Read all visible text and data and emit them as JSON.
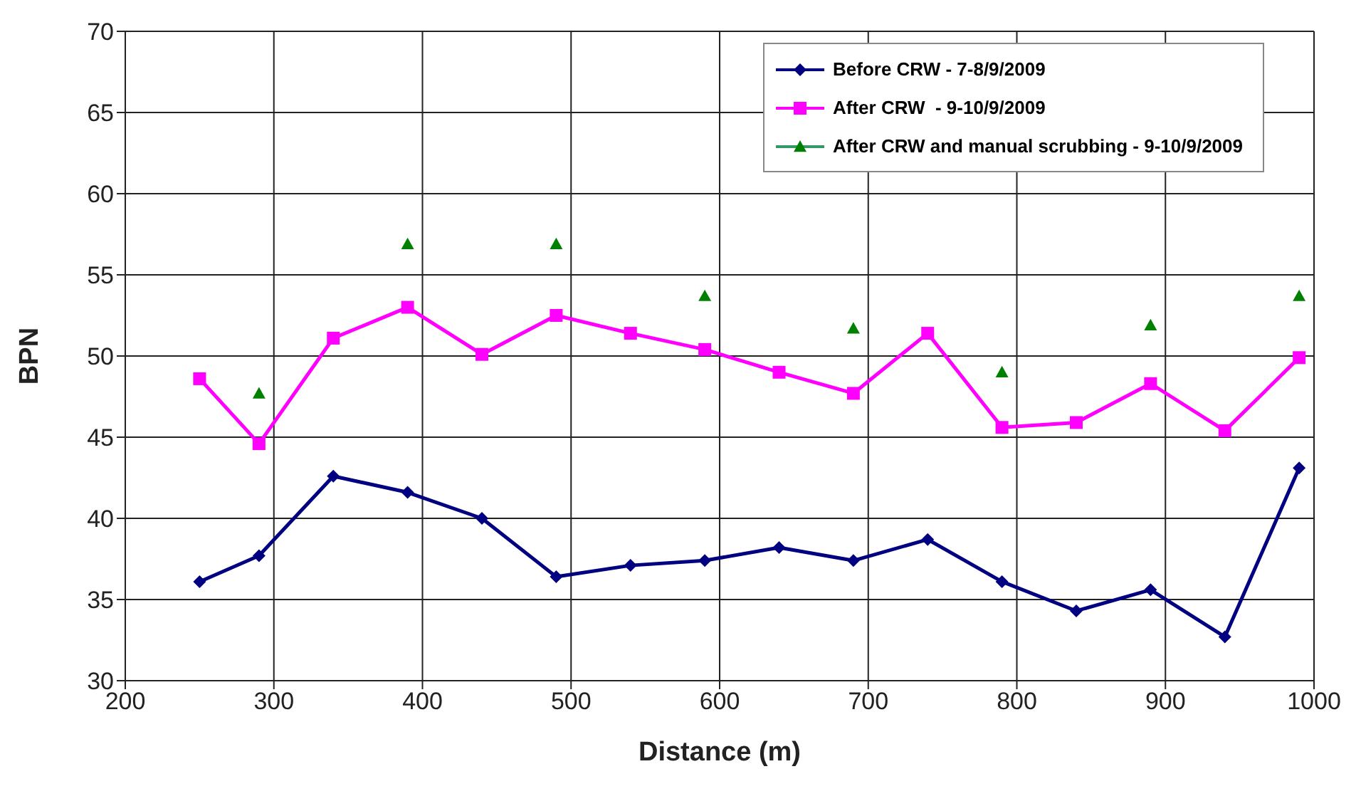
{
  "chart_data": {
    "type": "line",
    "xlabel": "Distance (m)",
    "ylabel": "BPN",
    "xlim": [
      200,
      1000
    ],
    "xticks": [
      200,
      300,
      400,
      500,
      600,
      700,
      800,
      900,
      1000
    ],
    "ylim": [
      30,
      70
    ],
    "yticks": [
      30,
      35,
      40,
      45,
      50,
      55,
      60,
      65,
      70
    ],
    "grid": true,
    "legend": "top right",
    "series": [
      {
        "name": "Before CRW - 7-8/9/2009",
        "color": "#000080",
        "marker": "diamond",
        "x": [
          250,
          290,
          340,
          390,
          440,
          490,
          540,
          590,
          640,
          690,
          740,
          790,
          840,
          890,
          940,
          990
        ],
        "values": [
          36.1,
          37.7,
          42.6,
          41.6,
          40.0,
          36.4,
          37.1,
          37.4,
          38.2,
          37.4,
          38.7,
          36.1,
          34.3,
          35.6,
          32.7,
          43.1
        ]
      },
      {
        "name": "After CRW  - 9-10/9/2009",
        "color": "#ff00ff",
        "marker": "square",
        "x": [
          250,
          290,
          340,
          390,
          440,
          490,
          540,
          590,
          640,
          690,
          740,
          790,
          840,
          890,
          940,
          990
        ],
        "values": [
          48.6,
          44.6,
          51.1,
          53.0,
          50.1,
          52.5,
          51.4,
          50.4,
          49.0,
          47.7,
          51.4,
          45.6,
          45.9,
          48.3,
          45.4,
          49.9
        ]
      },
      {
        "name": "After CRW and manual scrubbing - 9-10/9/2009",
        "type": "scatter",
        "color": "#008000",
        "marker": "triangle",
        "x": [
          290,
          390,
          490,
          590,
          690,
          790,
          890,
          990
        ],
        "values": [
          47.7,
          56.9,
          56.9,
          53.7,
          51.7,
          49.0,
          51.9,
          53.7
        ]
      }
    ]
  }
}
